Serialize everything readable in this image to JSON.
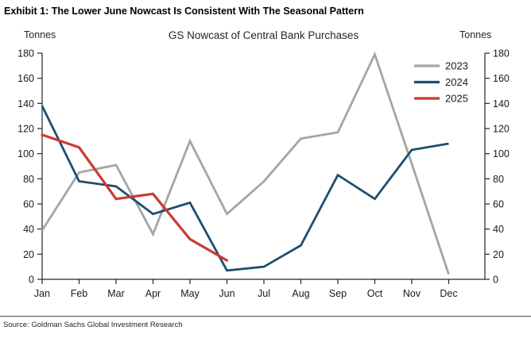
{
  "exhibit": {
    "title": "Exhibit 1: The Lower June Nowcast Is Consistent With The Seasonal Pattern"
  },
  "chart_data": {
    "type": "line",
    "title": "GS Nowcast of Central Bank Purchases",
    "left_axis_label": "Tonnes",
    "right_axis_label": "Tonnes",
    "categories": [
      "Jan",
      "Feb",
      "Mar",
      "Apr",
      "May",
      "Jun",
      "Jul",
      "Aug",
      "Sep",
      "Oct",
      "Nov",
      "Dec"
    ],
    "ylim": [
      0,
      180
    ],
    "y_tick_step": 20,
    "grid": false,
    "legend_position": "top-right-inside",
    "axis_color": "#262626",
    "label_color": "#1a1a1a",
    "series": [
      {
        "name": "2023",
        "color": "#a5a5a5",
        "values": [
          39,
          85,
          91,
          36,
          110,
          52,
          78,
          112,
          117,
          179,
          92,
          4
        ]
      },
      {
        "name": "2024",
        "color": "#1d4e6e",
        "values": [
          138,
          78,
          74,
          52,
          61,
          7,
          10,
          27,
          83,
          64,
          103,
          108
        ]
      },
      {
        "name": "2025",
        "color": "#cc3a33",
        "values": [
          115,
          105,
          64,
          68,
          32,
          15
        ]
      }
    ]
  },
  "footer": {
    "source": "Source: Goldman Sachs Global Investment Research"
  }
}
